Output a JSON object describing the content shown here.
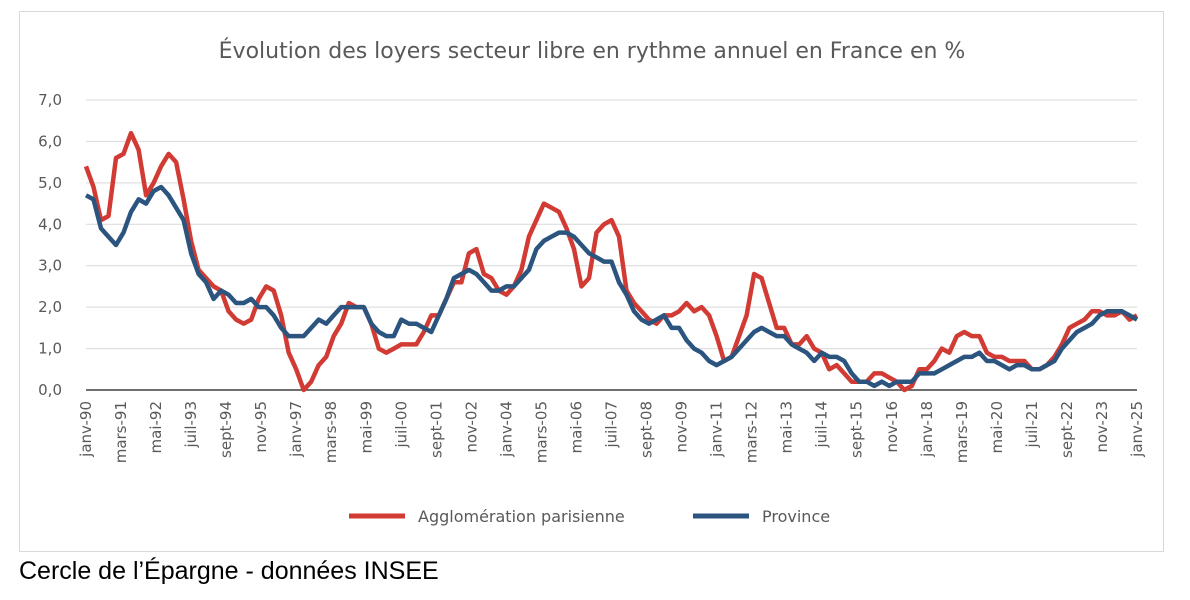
{
  "chart_data": {
    "type": "line",
    "title": "Évolution des loyers secteur libre en rythme annuel en France  en %",
    "xlabel": "",
    "ylabel": "",
    "ylim": [
      0,
      7
    ],
    "y_ticks": [
      "0,0",
      "1,0",
      "2,0",
      "3,0",
      "4,0",
      "5,0",
      "6,0",
      "7,0"
    ],
    "grid": true,
    "legend": "bottom",
    "x_ticks": [
      "janv-90",
      "mars-91",
      "mai-92",
      "juil-93",
      "sept-94",
      "nov-95",
      "janv-97",
      "mars-98",
      "mai-99",
      "juil-00",
      "sept-01",
      "nov-02",
      "janv-04",
      "mars-05",
      "mai-06",
      "juil-07",
      "sept-08",
      "nov-09",
      "janv-11",
      "mars-12",
      "mai-13",
      "juil-14",
      "sept-15",
      "nov-16",
      "janv-18",
      "mars-19",
      "mai-20",
      "juil-21",
      "sept-22",
      "nov-23",
      "janv-25"
    ],
    "x": [
      "janv-90",
      "avr-90",
      "juil-90",
      "oct-90",
      "janv-91",
      "avr-91",
      "juil-91",
      "oct-91",
      "janv-92",
      "avr-92",
      "juil-92",
      "oct-92",
      "janv-93",
      "avr-93",
      "juil-93",
      "oct-93",
      "janv-94",
      "avr-94",
      "juil-94",
      "oct-94",
      "janv-95",
      "avr-95",
      "juil-95",
      "oct-95",
      "janv-96",
      "avr-96",
      "juil-96",
      "oct-96",
      "janv-97",
      "avr-97",
      "juil-97",
      "oct-97",
      "janv-98",
      "avr-98",
      "juil-98",
      "oct-98",
      "janv-99",
      "avr-99",
      "juil-99",
      "oct-99",
      "janv-00",
      "avr-00",
      "juil-00",
      "oct-00",
      "janv-01",
      "avr-01",
      "juil-01",
      "oct-01",
      "janv-02",
      "avr-02",
      "juil-02",
      "oct-02",
      "janv-03",
      "avr-03",
      "juil-03",
      "oct-03",
      "janv-04",
      "avr-04",
      "juil-04",
      "oct-04",
      "janv-05",
      "avr-05",
      "juil-05",
      "oct-05",
      "janv-06",
      "avr-06",
      "juil-06",
      "oct-06",
      "janv-07",
      "avr-07",
      "juil-07",
      "oct-07",
      "janv-08",
      "avr-08",
      "juil-08",
      "oct-08",
      "janv-09",
      "avr-09",
      "juil-09",
      "oct-09",
      "janv-10",
      "avr-10",
      "juil-10",
      "oct-10",
      "janv-11",
      "avr-11",
      "juil-11",
      "oct-11",
      "janv-12",
      "avr-12",
      "juil-12",
      "oct-12",
      "janv-13",
      "avr-13",
      "juil-13",
      "oct-13",
      "janv-14",
      "avr-14",
      "juil-14",
      "oct-14",
      "janv-15",
      "avr-15",
      "juil-15",
      "oct-15",
      "janv-16",
      "avr-16",
      "juil-16",
      "oct-16",
      "janv-17",
      "avr-17",
      "juil-17",
      "oct-17",
      "janv-18",
      "avr-18",
      "juil-18",
      "oct-18",
      "janv-19",
      "avr-19",
      "juil-19",
      "oct-19",
      "janv-20",
      "avr-20",
      "juil-20",
      "oct-20",
      "janv-21",
      "avr-21",
      "juil-21",
      "oct-21",
      "janv-22",
      "avr-22",
      "juil-22",
      "oct-22",
      "janv-23",
      "avr-23",
      "juil-23",
      "oct-23",
      "janv-24",
      "avr-24",
      "juil-24",
      "oct-24",
      "janv-25"
    ],
    "series": [
      {
        "name": "Agglomération parisienne",
        "color": "#d13b34",
        "values": [
          5.4,
          4.9,
          4.1,
          4.2,
          5.6,
          5.7,
          6.2,
          5.8,
          4.7,
          5.0,
          5.4,
          5.7,
          5.5,
          4.6,
          3.6,
          2.9,
          2.7,
          2.5,
          2.4,
          1.9,
          1.7,
          1.6,
          1.7,
          2.2,
          2.5,
          2.4,
          1.8,
          0.9,
          0.5,
          0.0,
          0.2,
          0.6,
          0.8,
          1.3,
          1.6,
          2.1,
          2.0,
          2.0,
          1.6,
          1.0,
          0.9,
          1.0,
          1.1,
          1.1,
          1.1,
          1.4,
          1.8,
          1.8,
          2.2,
          2.6,
          2.6,
          3.3,
          3.4,
          2.8,
          2.7,
          2.4,
          2.3,
          2.5,
          2.9,
          3.7,
          4.1,
          4.5,
          4.4,
          4.3,
          3.9,
          3.4,
          2.5,
          2.7,
          3.8,
          4.0,
          4.1,
          3.7,
          2.4,
          2.1,
          1.9,
          1.7,
          1.6,
          1.8,
          1.8,
          1.9,
          2.1,
          1.9,
          2.0,
          1.8,
          1.3,
          0.7,
          0.8,
          1.3,
          1.8,
          2.8,
          2.7,
          2.1,
          1.5,
          1.5,
          1.1,
          1.1,
          1.3,
          1.0,
          0.9,
          0.5,
          0.6,
          0.4,
          0.2,
          0.2,
          0.2,
          0.4,
          0.4,
          0.3,
          0.2,
          0.0,
          0.1,
          0.5,
          0.5,
          0.7,
          1.0,
          0.9,
          1.3,
          1.4,
          1.3,
          1.3,
          0.9,
          0.8,
          0.8,
          0.7,
          0.7,
          0.7,
          0.5,
          0.5,
          0.6,
          0.8,
          1.1,
          1.5,
          1.6,
          1.7,
          1.9,
          1.9,
          1.8,
          1.8,
          1.9,
          1.7,
          1.8
        ]
      },
      {
        "name": "Province",
        "color": "#2b557f",
        "values": [
          4.7,
          4.6,
          3.9,
          3.7,
          3.5,
          3.8,
          4.3,
          4.6,
          4.5,
          4.8,
          4.9,
          4.7,
          4.4,
          4.1,
          3.3,
          2.8,
          2.6,
          2.2,
          2.4,
          2.3,
          2.1,
          2.1,
          2.2,
          2.0,
          2.0,
          1.8,
          1.5,
          1.3,
          1.3,
          1.3,
          1.5,
          1.7,
          1.6,
          1.8,
          2.0,
          2.0,
          2.0,
          2.0,
          1.6,
          1.4,
          1.3,
          1.3,
          1.7,
          1.6,
          1.6,
          1.5,
          1.4,
          1.8,
          2.2,
          2.7,
          2.8,
          2.9,
          2.8,
          2.6,
          2.4,
          2.4,
          2.5,
          2.5,
          2.7,
          2.9,
          3.4,
          3.6,
          3.7,
          3.8,
          3.8,
          3.7,
          3.5,
          3.3,
          3.2,
          3.1,
          3.1,
          2.6,
          2.3,
          1.9,
          1.7,
          1.6,
          1.7,
          1.8,
          1.5,
          1.5,
          1.2,
          1.0,
          0.9,
          0.7,
          0.6,
          0.7,
          0.8,
          1.0,
          1.2,
          1.4,
          1.5,
          1.4,
          1.3,
          1.3,
          1.1,
          1.0,
          0.9,
          0.7,
          0.9,
          0.8,
          0.8,
          0.7,
          0.4,
          0.2,
          0.2,
          0.1,
          0.2,
          0.1,
          0.2,
          0.2,
          0.2,
          0.4,
          0.4,
          0.4,
          0.5,
          0.6,
          0.7,
          0.8,
          0.8,
          0.9,
          0.7,
          0.7,
          0.6,
          0.5,
          0.6,
          0.6,
          0.5,
          0.5,
          0.6,
          0.7,
          1.0,
          1.2,
          1.4,
          1.5,
          1.6,
          1.8,
          1.9,
          1.9,
          1.9,
          1.8,
          1.7
        ]
      }
    ]
  },
  "footer": "Cercle de l’Épargne - données INSEE"
}
